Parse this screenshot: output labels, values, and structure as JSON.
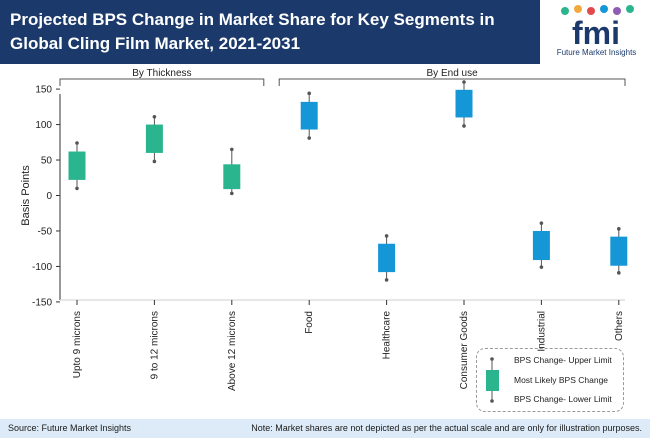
{
  "header": {
    "title": "Projected BPS Change in Market Share for Key Segments in Global Cling Film Market, 2021-2031"
  },
  "logo": {
    "letters": "fmi",
    "subtitle": "Future Market Insights"
  },
  "footer": {
    "source": "Source: Future Market Insights",
    "note": "Note: Market shares are not depicted as per the actual scale and are only for illustration purposes."
  },
  "legend": {
    "upper": "BPS Change- Upper Limit",
    "likely": "Most Likely BPS Change",
    "lower": "BPS Change- Lower Limit"
  },
  "colors": {
    "header": "#1b3a6b",
    "thickness": "#2bb58e",
    "end_use": "#1596d6",
    "whisker": "#555555",
    "footer": "#dcebf7"
  },
  "chart_data": {
    "type": "box",
    "ylabel": "Basis Points",
    "ylim": [
      -160,
      160
    ],
    "yticks": [
      150,
      100,
      50,
      0,
      -50,
      -100,
      -150
    ],
    "groups": [
      {
        "label": "By Thickness",
        "color": "thickness",
        "start": 0,
        "end": 2
      },
      {
        "label": "By End use",
        "color": "end_use",
        "start": 3,
        "end": 7
      }
    ],
    "categories": [
      "Upto 9 microns",
      "9 to 12 microns",
      "Above 12 microns",
      "Food",
      "Healthcare",
      "Consumer Goods",
      "Industrial",
      "Others"
    ],
    "boxes": [
      {
        "min": 10,
        "q1": 22,
        "q3": 62,
        "max": 74
      },
      {
        "min": 48,
        "q1": 60,
        "q3": 100,
        "max": 111
      },
      {
        "min": 3,
        "q1": 9,
        "q3": 44,
        "max": 65
      },
      {
        "min": 81,
        "q1": 93,
        "q3": 132,
        "max": 144
      },
      {
        "min": -119,
        "q1": -108,
        "q3": -68,
        "max": -57
      },
      {
        "min": 98,
        "q1": 110,
        "q3": 149,
        "max": 160
      },
      {
        "min": -101,
        "q1": -91,
        "q3": -50,
        "max": -39
      },
      {
        "min": -109,
        "q1": -99,
        "q3": -58,
        "max": -47
      }
    ]
  }
}
